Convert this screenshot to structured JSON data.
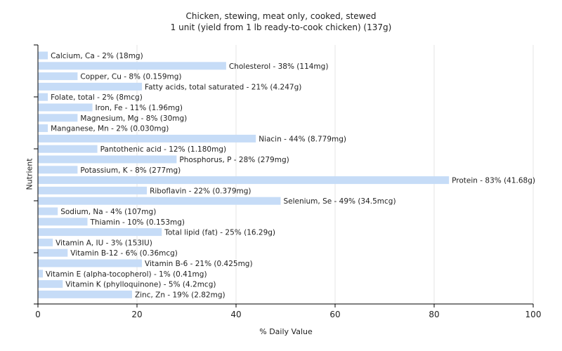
{
  "chart_data": {
    "type": "bar",
    "orientation": "horizontal",
    "title": "Chicken, stewing, meat only, cooked, stewed",
    "subtitle": "1 unit (yield from 1 lb ready-to-cook chicken) (137g)",
    "xlabel": "% Daily Value",
    "ylabel": "Nutrient",
    "xlim": [
      0,
      100
    ],
    "xticks": [
      0,
      20,
      40,
      60,
      80,
      100
    ],
    "grid": true,
    "bar_color": "#c6dcf7",
    "categories": [
      "Calcium, Ca",
      "Cholesterol",
      "Copper, Cu",
      "Fatty acids, total saturated",
      "Folate, total",
      "Iron, Fe",
      "Magnesium, Mg",
      "Manganese, Mn",
      "Niacin",
      "Pantothenic acid",
      "Phosphorus, P",
      "Potassium, K",
      "Protein",
      "Riboflavin",
      "Selenium, Se",
      "Sodium, Na",
      "Thiamin",
      "Total lipid (fat)",
      "Vitamin A, IU",
      "Vitamin B-12",
      "Vitamin B-6",
      "Vitamin E (alpha-tocopherol)",
      "Vitamin K (phylloquinone)",
      "Zinc, Zn"
    ],
    "values": [
      2,
      38,
      8,
      21,
      2,
      11,
      8,
      2,
      44,
      12,
      28,
      8,
      83,
      22,
      49,
      4,
      10,
      25,
      3,
      6,
      21,
      1,
      5,
      19
    ],
    "labels": [
      "Calcium, Ca - 2% (18mg)",
      "Cholesterol - 38% (114mg)",
      "Copper, Cu - 8% (0.159mg)",
      "Fatty acids, total saturated - 21% (4.247g)",
      "Folate, total - 2% (8mcg)",
      "Iron, Fe - 11% (1.96mg)",
      "Magnesium, Mg - 8% (30mg)",
      "Manganese, Mn - 2% (0.030mg)",
      "Niacin - 44% (8.779mg)",
      "Pantothenic acid - 12% (1.180mg)",
      "Phosphorus, P - 28% (279mg)",
      "Potassium, K - 8% (277mg)",
      "Protein - 83% (41.68g)",
      "Riboflavin - 22% (0.379mg)",
      "Selenium, Se - 49% (34.5mcg)",
      "Sodium, Na - 4% (107mg)",
      "Thiamin - 10% (0.153mg)",
      "Total lipid (fat) - 25% (16.29g)",
      "Vitamin A, IU - 3% (153IU)",
      "Vitamin B-12 - 6% (0.36mcg)",
      "Vitamin B-6 - 21% (0.425mg)",
      "Vitamin E (alpha-tocopherol) - 1% (0.41mg)",
      "Vitamin K (phylloquinone) - 5% (4.2mcg)",
      "Zinc, Zn - 19% (2.82mg)"
    ]
  }
}
